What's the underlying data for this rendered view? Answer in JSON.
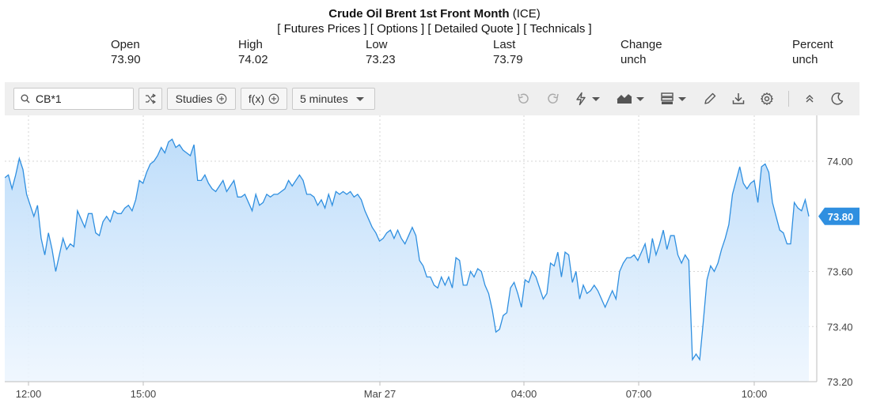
{
  "header": {
    "title_bold": "Crude Oil Brent 1st Front Month",
    "title_suffix": "(ICE)",
    "links": [
      "Futures Prices",
      "Options",
      "Detailed Quote",
      "Technicals"
    ]
  },
  "stats": [
    {
      "label": "Open",
      "value": "73.90"
    },
    {
      "label": "High",
      "value": "74.02"
    },
    {
      "label": "Low",
      "value": "73.23"
    },
    {
      "label": "Last",
      "value": "73.79"
    },
    {
      "label": "Change",
      "value": "unch"
    },
    {
      "label": "Percent",
      "value": "unch"
    }
  ],
  "toolbar": {
    "symbol_value": "CB*1",
    "studies_label": "Studies",
    "fx_label": "f(x)",
    "interval_label": "5 minutes",
    "icons": [
      "shuffle-icon",
      "plus-circle-icon",
      "undo-icon",
      "redo-icon",
      "lightning-icon",
      "chart-type-icon",
      "layout-icon",
      "pencil-icon",
      "download-icon",
      "gear-icon",
      "collapse-icon",
      "moon-icon"
    ]
  },
  "chart_data": {
    "type": "area",
    "x_ticks": [
      "12:00",
      "15:00",
      "Mar 27",
      "04:00",
      "07:00",
      "10:00"
    ],
    "y_ticks": [
      "74.00",
      "73.60",
      "73.40",
      "73.20"
    ],
    "ylim": [
      73.2,
      74.2
    ],
    "last_label": "73.80",
    "line_color": "#2f8fe0",
    "fill_color": "#cfe5fb",
    "series": [
      {
        "values": [
          73.94,
          73.95,
          73.9,
          73.95,
          74.01,
          73.97,
          73.88,
          73.84,
          73.8,
          73.84,
          73.72,
          73.66,
          73.74,
          73.68,
          73.6,
          73.66,
          73.72,
          73.68,
          73.7,
          73.69,
          73.82,
          73.79,
          73.76,
          73.81,
          73.81,
          73.74,
          73.73,
          73.78,
          73.8,
          73.78,
          73.82,
          73.81,
          73.81,
          73.83,
          73.84,
          73.82,
          73.86,
          73.93,
          73.92,
          73.96,
          73.99,
          74.0,
          74.02,
          74.05,
          74.03,
          74.07,
          74.08,
          74.05,
          74.06,
          74.04,
          74.03,
          74.02,
          74.06,
          73.93,
          73.93,
          73.95,
          73.92,
          73.9,
          73.89,
          73.91,
          73.93,
          73.89,
          73.91,
          73.93,
          73.87,
          73.87,
          73.88,
          73.85,
          73.82,
          73.88,
          73.84,
          73.85,
          73.88,
          73.87,
          73.88,
          73.88,
          73.89,
          73.9,
          73.93,
          73.91,
          73.93,
          73.95,
          73.93,
          73.88,
          73.88,
          73.87,
          73.84,
          73.86,
          73.83,
          73.88,
          73.84,
          73.89,
          73.88,
          73.89,
          73.88,
          73.89,
          73.87,
          73.88,
          73.86,
          73.82,
          73.79,
          73.76,
          73.74,
          73.71,
          73.72,
          73.74,
          73.75,
          73.72,
          73.75,
          73.72,
          73.7,
          73.73,
          73.76,
          73.73,
          73.64,
          73.62,
          73.58,
          73.58,
          73.55,
          73.54,
          73.58,
          73.55,
          73.58,
          73.54,
          73.65,
          73.64,
          73.55,
          73.55,
          73.6,
          73.58,
          73.61,
          73.6,
          73.55,
          73.52,
          73.46,
          73.38,
          73.39,
          73.44,
          73.45,
          73.54,
          73.56,
          73.52,
          73.47,
          73.57,
          73.56,
          73.6,
          73.58,
          73.54,
          73.5,
          73.52,
          73.63,
          73.62,
          73.67,
          73.58,
          73.67,
          73.66,
          73.56,
          73.6,
          73.5,
          73.55,
          73.52,
          73.53,
          73.55,
          73.53,
          73.5,
          73.47,
          73.5,
          73.53,
          73.5,
          73.6,
          73.63,
          73.65,
          73.65,
          73.66,
          73.64,
          73.67,
          73.7,
          73.63,
          73.72,
          73.66,
          73.7,
          73.75,
          73.68,
          73.73,
          73.73,
          73.66,
          73.63,
          73.66,
          73.64,
          73.28,
          73.3,
          73.28,
          73.42,
          73.57,
          73.62,
          73.6,
          73.63,
          73.68,
          73.72,
          73.77,
          73.88,
          73.93,
          73.98,
          73.92,
          73.9,
          73.92,
          73.93,
          73.85,
          73.98,
          73.99,
          73.96,
          73.85,
          73.8,
          73.75,
          73.74,
          73.7,
          73.7,
          73.85,
          73.83,
          73.82,
          73.86,
          73.8
        ]
      }
    ]
  }
}
